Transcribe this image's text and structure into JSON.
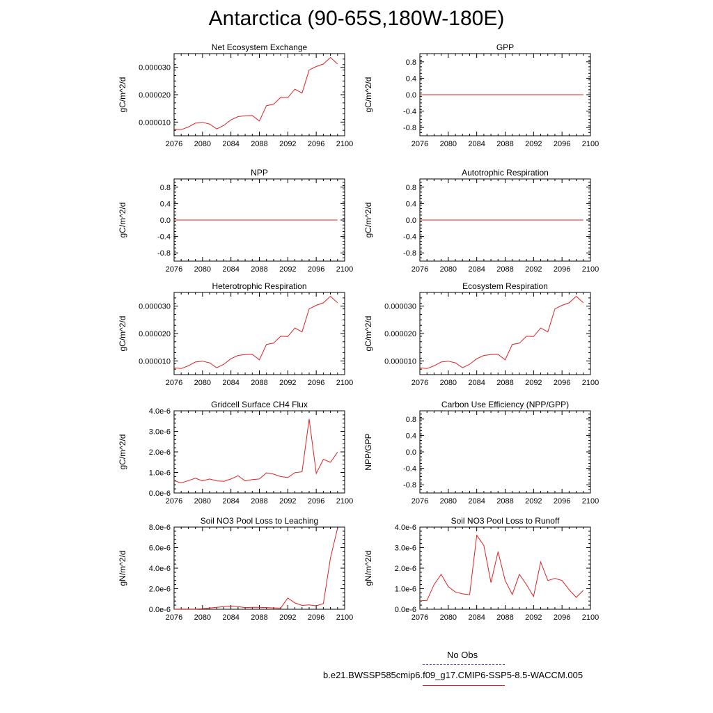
{
  "title": "Antarctica (90-65S,180W-180E)",
  "legend": {
    "items": [
      {
        "label": "No Obs",
        "color": "#4a4ad8",
        "style": "dashed"
      },
      {
        "label": "b.e21.BWSSP585cmip6.f09_g17.CMIP6-SSP5-8.5-WACCM.005",
        "color": "#e02020",
        "style": "solid"
      }
    ]
  },
  "chart_data": [
    {
      "type": "line",
      "title": "Net Ecosystem Exchange",
      "ylabel": "gC/m^2/d",
      "xlim": [
        2076,
        2100
      ],
      "xticks": [
        "2076",
        "2080",
        "2084",
        "2088",
        "2092",
        "2096",
        "2100"
      ],
      "ylim": [
        5e-06,
        3.5e-05
      ],
      "yticks": [
        1e-05,
        2e-05,
        3e-05
      ],
      "ytick_labels": [
        "0.000010",
        "0.000020",
        "0.000030"
      ],
      "line_color": "#e02020",
      "x": [
        2076,
        2077,
        2078,
        2079,
        2080,
        2081,
        2082,
        2083,
        2084,
        2085,
        2086,
        2087,
        2088,
        2089,
        2090,
        2091,
        2092,
        2093,
        2094,
        2095,
        2096,
        2097,
        2098,
        2099
      ],
      "values": [
        7.5e-06,
        7.2e-06,
        8.2e-06,
        9.6e-06,
        9.9e-06,
        9.3e-06,
        7.5e-06,
        8.8e-06,
        1.08e-05,
        1.2e-05,
        1.23e-05,
        1.24e-05,
        1.04e-05,
        1.6e-05,
        1.65e-05,
        1.9e-05,
        1.89e-05,
        2.2e-05,
        2.06e-05,
        2.9e-05,
        3.03e-05,
        3.12e-05,
        3.36e-05,
        3.12e-05
      ]
    },
    {
      "type": "line",
      "title": "GPP",
      "ylabel": "gC/m^2/d",
      "xlim": [
        2076,
        2100
      ],
      "xticks": [
        "2076",
        "2080",
        "2084",
        "2088",
        "2092",
        "2096",
        "2100"
      ],
      "ylim": [
        -1,
        1
      ],
      "yticks": [
        -0.8,
        -0.4,
        0,
        0.4,
        0.8
      ],
      "ytick_labels": [
        "-0.8",
        "-0.4",
        "0.0",
        "0.4",
        "0.8"
      ],
      "line_color": "#e02020",
      "x": [
        2076,
        2077,
        2078,
        2079,
        2080,
        2081,
        2082,
        2083,
        2084,
        2085,
        2086,
        2087,
        2088,
        2089,
        2090,
        2091,
        2092,
        2093,
        2094,
        2095,
        2096,
        2097,
        2098,
        2099
      ],
      "values": [
        0,
        0,
        0,
        0,
        0,
        0,
        0,
        0,
        0,
        0,
        0,
        0,
        0,
        0,
        0,
        0,
        0,
        0,
        0,
        0,
        0,
        0,
        0,
        0
      ]
    },
    {
      "type": "line",
      "title": "NPP",
      "ylabel": "gC/m^2/d",
      "xlim": [
        2076,
        2100
      ],
      "xticks": [
        "2076",
        "2080",
        "2084",
        "2088",
        "2092",
        "2096",
        "2100"
      ],
      "ylim": [
        -1,
        1
      ],
      "yticks": [
        -0.8,
        -0.4,
        0,
        0.4,
        0.8
      ],
      "ytick_labels": [
        "-0.8",
        "-0.4",
        "0.0",
        "0.4",
        "0.8"
      ],
      "line_color": "#e02020",
      "x": [
        2076,
        2077,
        2078,
        2079,
        2080,
        2081,
        2082,
        2083,
        2084,
        2085,
        2086,
        2087,
        2088,
        2089,
        2090,
        2091,
        2092,
        2093,
        2094,
        2095,
        2096,
        2097,
        2098,
        2099
      ],
      "values": [
        0,
        0,
        0,
        0,
        0,
        0,
        0,
        0,
        0,
        0,
        0,
        0,
        0,
        0,
        0,
        0,
        0,
        0,
        0,
        0,
        0,
        0,
        0,
        0
      ]
    },
    {
      "type": "line",
      "title": "Autotrophic Respiration",
      "ylabel": "gC/m^2/d",
      "xlim": [
        2076,
        2100
      ],
      "xticks": [
        "2076",
        "2080",
        "2084",
        "2088",
        "2092",
        "2096",
        "2100"
      ],
      "ylim": [
        -1,
        1
      ],
      "yticks": [
        -0.8,
        -0.4,
        0,
        0.4,
        0.8
      ],
      "ytick_labels": [
        "-0.8",
        "-0.4",
        "0.0",
        "0.4",
        "0.8"
      ],
      "line_color": "#e02020",
      "x": [
        2076,
        2077,
        2078,
        2079,
        2080,
        2081,
        2082,
        2083,
        2084,
        2085,
        2086,
        2087,
        2088,
        2089,
        2090,
        2091,
        2092,
        2093,
        2094,
        2095,
        2096,
        2097,
        2098,
        2099
      ],
      "values": [
        0,
        0,
        0,
        0,
        0,
        0,
        0,
        0,
        0,
        0,
        0,
        0,
        0,
        0,
        0,
        0,
        0,
        0,
        0,
        0,
        0,
        0,
        0,
        0
      ]
    },
    {
      "type": "line",
      "title": "Heterotrophic Respiration",
      "ylabel": "gC/m^2/d",
      "xlim": [
        2076,
        2100
      ],
      "xticks": [
        "2076",
        "2080",
        "2084",
        "2088",
        "2092",
        "2096",
        "2100"
      ],
      "ylim": [
        5e-06,
        3.5e-05
      ],
      "yticks": [
        1e-05,
        2e-05,
        3e-05
      ],
      "ytick_labels": [
        "0.000010",
        "0.000020",
        "0.000030"
      ],
      "line_color": "#e02020",
      "x": [
        2076,
        2077,
        2078,
        2079,
        2080,
        2081,
        2082,
        2083,
        2084,
        2085,
        2086,
        2087,
        2088,
        2089,
        2090,
        2091,
        2092,
        2093,
        2094,
        2095,
        2096,
        2097,
        2098,
        2099
      ],
      "values": [
        7.5e-06,
        7.2e-06,
        8.2e-06,
        9.6e-06,
        9.9e-06,
        9.3e-06,
        7.5e-06,
        8.8e-06,
        1.08e-05,
        1.2e-05,
        1.23e-05,
        1.24e-05,
        1.04e-05,
        1.6e-05,
        1.65e-05,
        1.9e-05,
        1.89e-05,
        2.2e-05,
        2.06e-05,
        2.9e-05,
        3.03e-05,
        3.12e-05,
        3.36e-05,
        3.12e-05
      ]
    },
    {
      "type": "line",
      "title": "Ecosystem Respiration",
      "ylabel": "gC/m^2/d",
      "xlim": [
        2076,
        2100
      ],
      "xticks": [
        "2076",
        "2080",
        "2084",
        "2088",
        "2092",
        "2096",
        "2100"
      ],
      "ylim": [
        5e-06,
        3.5e-05
      ],
      "yticks": [
        1e-05,
        2e-05,
        3e-05
      ],
      "ytick_labels": [
        "0.000010",
        "0.000020",
        "0.000030"
      ],
      "line_color": "#e02020",
      "x": [
        2076,
        2077,
        2078,
        2079,
        2080,
        2081,
        2082,
        2083,
        2084,
        2085,
        2086,
        2087,
        2088,
        2089,
        2090,
        2091,
        2092,
        2093,
        2094,
        2095,
        2096,
        2097,
        2098,
        2099
      ],
      "values": [
        7.5e-06,
        7.2e-06,
        8.2e-06,
        9.6e-06,
        9.9e-06,
        9.3e-06,
        7.5e-06,
        8.8e-06,
        1.08e-05,
        1.2e-05,
        1.23e-05,
        1.24e-05,
        1.04e-05,
        1.6e-05,
        1.65e-05,
        1.9e-05,
        1.89e-05,
        2.2e-05,
        2.06e-05,
        2.9e-05,
        3.03e-05,
        3.12e-05,
        3.36e-05,
        3.12e-05
      ]
    },
    {
      "type": "line",
      "title": "Gridcell Surface CH4 Flux",
      "ylabel": "gC/m^2/d",
      "xlim": [
        2076,
        2100
      ],
      "xticks": [
        "2076",
        "2080",
        "2084",
        "2088",
        "2092",
        "2096",
        "2100"
      ],
      "ylim": [
        0,
        4e-06
      ],
      "yticks": [
        0,
        1e-06,
        2e-06,
        3e-06,
        4e-06
      ],
      "ytick_labels": [
        "0.0e-6",
        "1.0e-6",
        "2.0e-6",
        "3.0e-6",
        "4.0e-6"
      ],
      "line_color": "#e02020",
      "x": [
        2076,
        2077,
        2078,
        2079,
        2080,
        2081,
        2082,
        2083,
        2084,
        2085,
        2086,
        2087,
        2088,
        2089,
        2090,
        2091,
        2092,
        2093,
        2094,
        2095,
        2096,
        2097,
        2098,
        2099
      ],
      "values": [
        6e-07,
        4.9e-07,
        6e-07,
        7.2e-07,
        5.9e-07,
        6.8e-07,
        5.9e-07,
        5.7e-07,
        6.8e-07,
        8.4e-07,
        5.9e-07,
        6.5e-07,
        6.8e-07,
        9.8e-07,
        9.2e-07,
        8e-07,
        7.5e-07,
        9.9e-07,
        1.03e-06,
        3.6e-06,
        9.5e-07,
        1.64e-06,
        1.49e-06,
        1.99e-06
      ]
    },
    {
      "type": "line",
      "title": "Carbon Use Efficiency (NPP/GPP)",
      "ylabel": "NPP/GPP",
      "xlim": [
        2076,
        2100
      ],
      "xticks": [
        "2076",
        "2080",
        "2084",
        "2088",
        "2092",
        "2096",
        "2100"
      ],
      "ylim": [
        -1,
        1
      ],
      "yticks": [
        -0.8,
        -0.4,
        0,
        0.4,
        0.8
      ],
      "ytick_labels": [
        "-0.8",
        "-0.4",
        "0.0",
        "0.4",
        "0.8"
      ],
      "line_color": "#e02020",
      "x": [],
      "values": []
    },
    {
      "type": "line",
      "title": "Soil NO3 Pool Loss to Leaching",
      "ylabel": "gN/m^2/d",
      "xlim": [
        2076,
        2100
      ],
      "xticks": [
        "2076",
        "2080",
        "2084",
        "2088",
        "2092",
        "2096",
        "2100"
      ],
      "ylim": [
        0,
        8e-06
      ],
      "yticks": [
        0,
        2e-06,
        4e-06,
        6e-06,
        8e-06
      ],
      "ytick_labels": [
        "0.0e-6",
        "2.0e-6",
        "4.0e-6",
        "6.0e-6",
        "8.0e-6"
      ],
      "line_color": "#e02020",
      "x": [
        2076,
        2077,
        2078,
        2079,
        2080,
        2081,
        2082,
        2083,
        2084,
        2085,
        2086,
        2087,
        2088,
        2089,
        2090,
        2091,
        2092,
        2093,
        2094,
        2095,
        2096,
        2097,
        2098,
        2099
      ],
      "values": [
        2e-08,
        2e-08,
        2e-08,
        2e-08,
        5e-08,
        1.2e-07,
        1.8e-07,
        2.5e-07,
        3.2e-07,
        2.6e-07,
        1.6e-07,
        1.9e-07,
        1.8e-07,
        1.6e-07,
        1.3e-07,
        1.1e-07,
        1.1e-06,
        6.2e-07,
        3.7e-07,
        4.2e-07,
        3.3e-07,
        5.5e-07,
        5e-06,
        7.9e-06
      ]
    },
    {
      "type": "line",
      "title": "Soil NO3 Pool Loss to Runoff",
      "ylabel": "gN/m^2/d",
      "xlim": [
        2076,
        2100
      ],
      "xticks": [
        "2076",
        "2080",
        "2084",
        "2088",
        "2092",
        "2096",
        "2100"
      ],
      "ylim": [
        0,
        4e-06
      ],
      "yticks": [
        0,
        1e-06,
        2e-06,
        3e-06,
        4e-06
      ],
      "ytick_labels": [
        "0.0e-6",
        "1.0e-6",
        "2.0e-6",
        "3.0e-6",
        "4.0e-6"
      ],
      "line_color": "#e02020",
      "x": [
        2076,
        2077,
        2078,
        2079,
        2080,
        2081,
        2082,
        2083,
        2084,
        2085,
        2086,
        2087,
        2088,
        2089,
        2090,
        2091,
        2092,
        2093,
        2094,
        2095,
        2096,
        2097,
        2098,
        2099
      ],
      "values": [
        4.1e-07,
        4.3e-07,
        1.2e-06,
        1.7e-06,
        1.1e-06,
        8.4e-07,
        7.5e-07,
        7.1e-07,
        3.6e-06,
        3.1e-06,
        1.3e-06,
        2.8e-06,
        1.4e-06,
        7.2e-07,
        1.7e-06,
        1.2e-06,
        6.2e-07,
        2.3e-06,
        1.4e-06,
        1.5e-06,
        1.4e-06,
        9.5e-07,
        5.8e-07,
        9.2e-07
      ]
    }
  ]
}
